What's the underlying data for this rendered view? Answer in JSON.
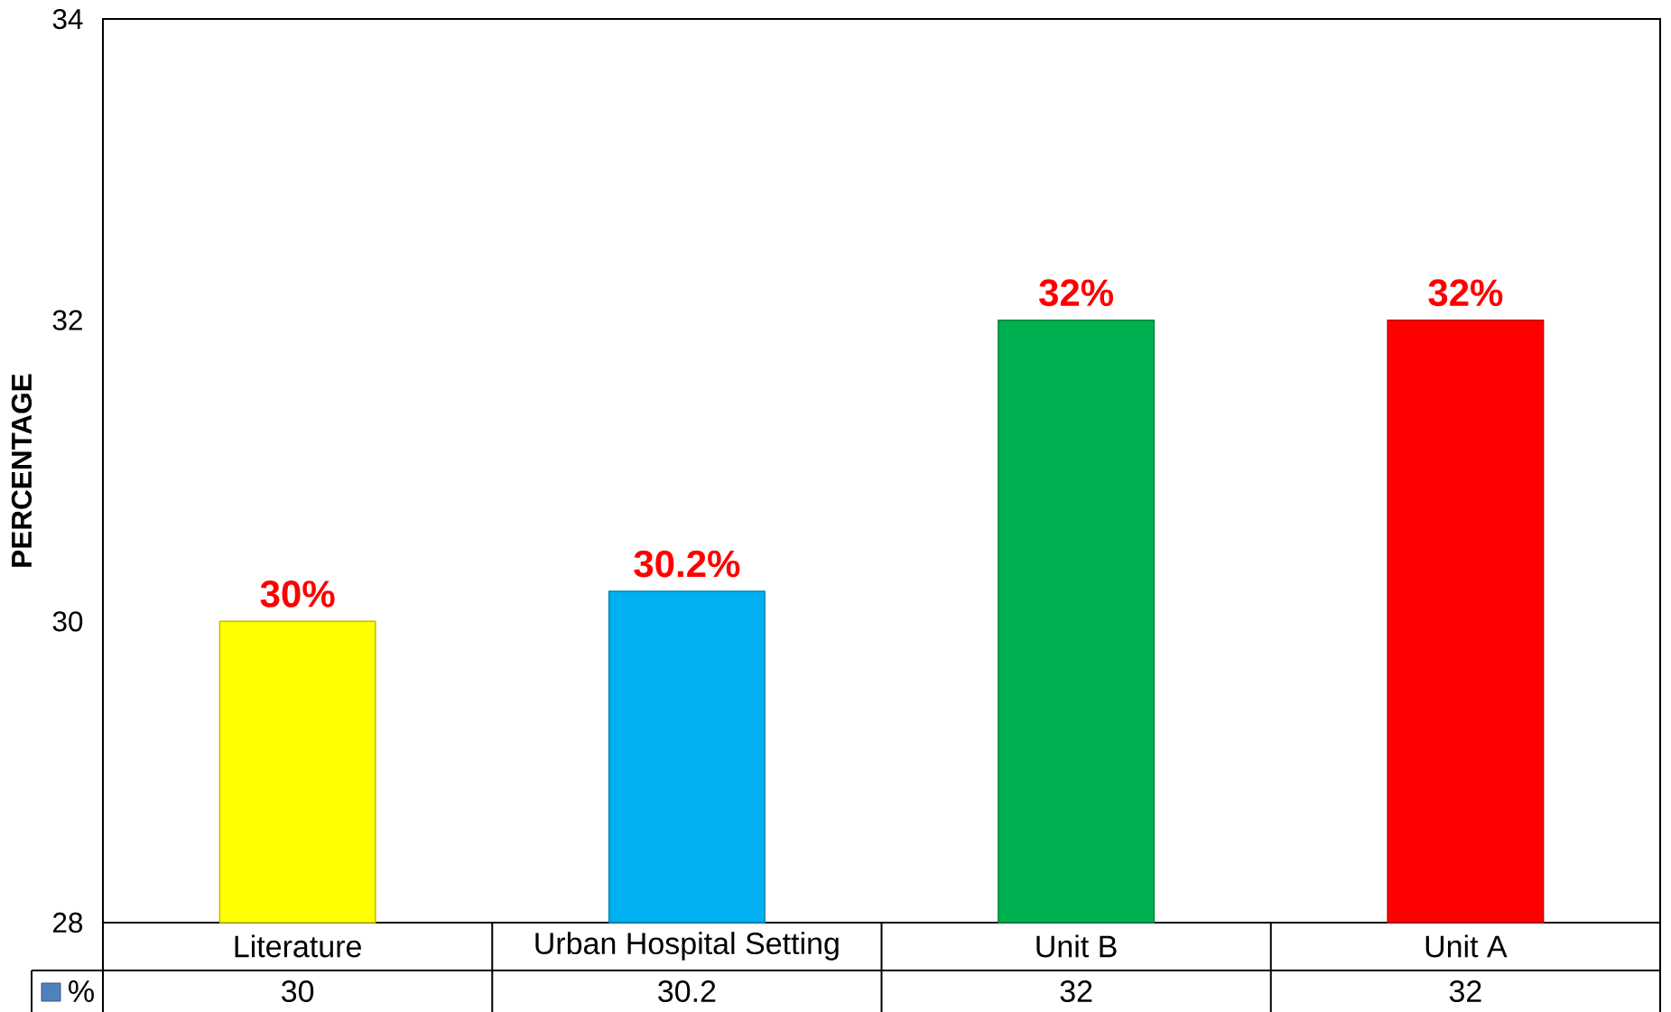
{
  "chart_data": {
    "type": "bar",
    "ylabel": "PERCENTAGE",
    "categories": [
      "Literature",
      "Urban Hospital Setting",
      "Unit B",
      "Unit A"
    ],
    "series": [
      {
        "name": "%",
        "color": "#4f81bd",
        "colors": [
          "#ffff00",
          "#00b0f0",
          "#00b050",
          "#ff0000"
        ],
        "values": [
          30,
          30.2,
          32,
          32
        ],
        "value_labels": [
          "30%",
          "30.2%",
          "32%",
          "32%"
        ]
      }
    ],
    "ylim": [
      28,
      34
    ],
    "yticks": [
      28,
      30,
      32,
      34
    ],
    "legend": "bottom left",
    "annotations": [
      "30",
      "30.2",
      "32",
      "32"
    ]
  }
}
